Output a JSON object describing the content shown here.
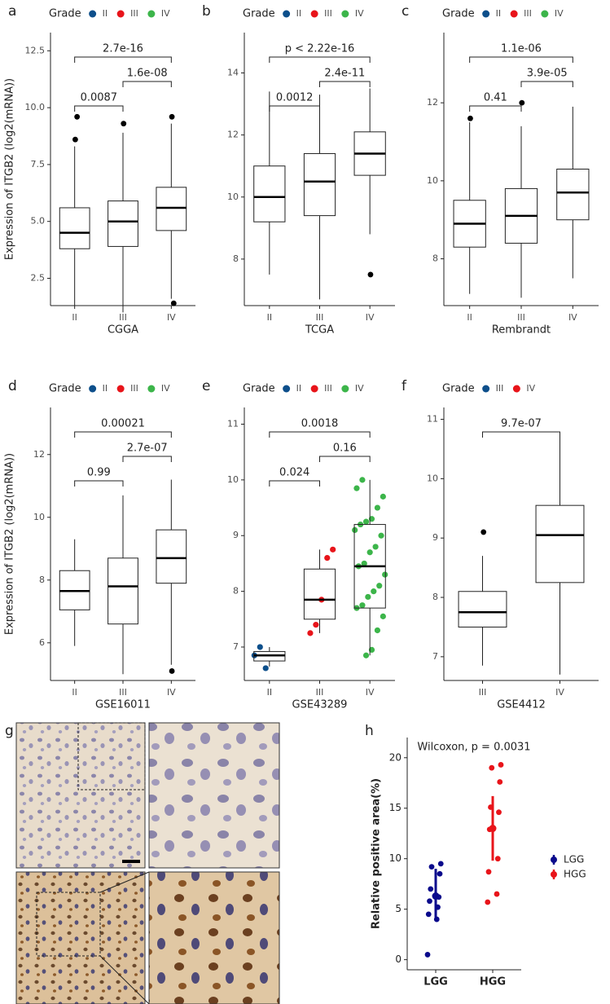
{
  "chart_data": [
    {
      "type": "box",
      "panel_label": "a",
      "legend_title": "Grade",
      "categories": [
        "II",
        "III",
        "IV"
      ],
      "colors": [
        "#0d4f8b",
        "#e8141a",
        "#3cb54a"
      ],
      "x_label": "CGGA",
      "y_label": "Expression of ITGB2 (log2(mRNA))",
      "ylim": [
        1.3,
        13.3
      ],
      "yticks": [
        2.5,
        {
          "value": 5,
          "label": "5.0"
        },
        7.5,
        {
          "value": 10,
          "label": "10.0"
        },
        12.5
      ],
      "boxes": [
        {
          "min": 1.3,
          "q1": 3.8,
          "median": 4.5,
          "q3": 5.6,
          "max": 8.3,
          "outliers": [
            8.6,
            9.6
          ]
        },
        {
          "min": 1.0,
          "q1": 3.9,
          "median": 5.0,
          "q3": 5.9,
          "max": 8.9,
          "outliers": [
            9.3
          ]
        },
        {
          "min": 1.6,
          "q1": 4.6,
          "median": 5.6,
          "q3": 6.5,
          "max": 9.3,
          "outliers": [
            9.6,
            1.4
          ]
        }
      ],
      "comparisons": [
        {
          "groups": [
            0,
            1
          ],
          "label": "0.0087"
        },
        {
          "groups": [
            1,
            2
          ],
          "label": "1.6e-08"
        },
        {
          "groups": [
            0,
            2
          ],
          "label": "2.7e-16"
        }
      ]
    },
    {
      "type": "box",
      "panel_label": "b",
      "legend_title": "Grade",
      "categories": [
        "II",
        "III",
        "IV"
      ],
      "colors": [
        "#0d4f8b",
        "#e8141a",
        "#3cb54a"
      ],
      "x_label": "TCGA",
      "ylim": [
        6.5,
        15.3
      ],
      "yticks": [
        8,
        10,
        12,
        14
      ],
      "boxes": [
        {
          "min": 7.5,
          "q1": 9.2,
          "median": 10.0,
          "q3": 11.0,
          "max": 13.4,
          "outliers": []
        },
        {
          "min": 6.7,
          "q1": 9.4,
          "median": 10.5,
          "q3": 11.4,
          "max": 13.3,
          "outliers": []
        },
        {
          "min": 8.8,
          "q1": 10.7,
          "median": 11.4,
          "q3": 12.1,
          "max": 13.5,
          "outliers": [
            7.5
          ]
        }
      ],
      "comparisons": [
        {
          "groups": [
            0,
            1
          ],
          "label": "0.0012"
        },
        {
          "groups": [
            1,
            2
          ],
          "label": "2.4e-11"
        },
        {
          "groups": [
            0,
            2
          ],
          "label": "p < 2.22e-16"
        }
      ]
    },
    {
      "type": "box",
      "panel_label": "c",
      "legend_title": "Grade",
      "categories": [
        "II",
        "III",
        "IV"
      ],
      "colors": [
        "#0d4f8b",
        "#e8141a",
        "#3cb54a"
      ],
      "x_label": "Rembrandt",
      "ylim": [
        6.8,
        13.8
      ],
      "yticks": [
        8,
        10,
        12
      ],
      "boxes": [
        {
          "min": 7.1,
          "q1": 8.3,
          "median": 8.9,
          "q3": 9.5,
          "max": 11.5,
          "outliers": [
            11.6
          ]
        },
        {
          "min": 7.0,
          "q1": 8.4,
          "median": 9.1,
          "q3": 9.8,
          "max": 11.4,
          "outliers": [
            12.0
          ]
        },
        {
          "min": 7.5,
          "q1": 9.0,
          "median": 9.7,
          "q3": 10.3,
          "max": 11.9,
          "outliers": []
        }
      ],
      "comparisons": [
        {
          "groups": [
            0,
            1
          ],
          "label": "0.41"
        },
        {
          "groups": [
            1,
            2
          ],
          "label": "3.9e-05"
        },
        {
          "groups": [
            0,
            2
          ],
          "label": "1.1e-06"
        }
      ]
    },
    {
      "type": "box",
      "panel_label": "d",
      "legend_title": "Grade",
      "categories": [
        "II",
        "III",
        "IV"
      ],
      "colors": [
        "#0d4f8b",
        "#e8141a",
        "#3cb54a"
      ],
      "x_label": "GSE16011",
      "y_label": "Expression of ITGB2 (log2(mRNA))",
      "ylim": [
        4.8,
        13.5
      ],
      "yticks": [
        6,
        8,
        10,
        12
      ],
      "boxes": [
        {
          "min": 5.9,
          "q1": 7.05,
          "median": 7.65,
          "q3": 8.3,
          "max": 9.3,
          "outliers": []
        },
        {
          "min": 5.0,
          "q1": 6.6,
          "median": 7.8,
          "q3": 8.7,
          "max": 10.7,
          "outliers": []
        },
        {
          "min": 5.3,
          "q1": 7.9,
          "median": 8.7,
          "q3": 9.6,
          "max": 11.2,
          "outliers": [
            5.1
          ]
        }
      ],
      "comparisons": [
        {
          "groups": [
            0,
            1
          ],
          "label": "0.99"
        },
        {
          "groups": [
            1,
            2
          ],
          "label": "2.7e-07"
        },
        {
          "groups": [
            0,
            2
          ],
          "label": "0.00021"
        }
      ]
    },
    {
      "type": "box",
      "panel_label": "e",
      "legend_title": "Grade",
      "categories": [
        "II",
        "III",
        "IV"
      ],
      "colors": [
        "#0d4f8b",
        "#e8141a",
        "#3cb54a"
      ],
      "x_label": "GSE43289",
      "ylim": [
        6.4,
        11.3
      ],
      "yticks": [
        7,
        8,
        9,
        10,
        11
      ],
      "boxes": [
        {
          "min": 6.65,
          "q1": 6.75,
          "median": 6.85,
          "q3": 6.92,
          "max": 7.0,
          "outliers": [],
          "points": [
            6.85,
            7.0,
            6.62
          ]
        },
        {
          "min": 7.25,
          "q1": 7.5,
          "median": 7.85,
          "q3": 8.4,
          "max": 8.75,
          "outliers": [],
          "points": [
            7.25,
            7.4,
            7.85,
            8.6,
            8.75
          ]
        },
        {
          "min": 6.85,
          "q1": 7.7,
          "median": 8.45,
          "q3": 9.2,
          "max": 10.0,
          "outliers": [],
          "points": [
            6.85,
            6.95,
            7.3,
            7.55,
            7.7,
            7.75,
            7.9,
            8.0,
            8.1,
            8.3,
            8.45,
            8.5,
            8.7,
            8.8,
            9.0,
            9.1,
            9.2,
            9.25,
            9.3,
            9.5,
            9.7,
            9.85,
            10.0
          ]
        }
      ],
      "comparisons": [
        {
          "groups": [
            0,
            1
          ],
          "label": "0.024"
        },
        {
          "groups": [
            1,
            2
          ],
          "label": "0.16"
        },
        {
          "groups": [
            0,
            2
          ],
          "label": "0.0018"
        }
      ]
    },
    {
      "type": "box",
      "panel_label": "f",
      "legend_title": "Grade",
      "categories": [
        "III",
        "IV"
      ],
      "colors": [
        "#0d4f8b",
        "#e8141a"
      ],
      "x_label": "GSE4412",
      "ylim": [
        6.6,
        11.2
      ],
      "yticks": [
        7,
        8,
        9,
        10,
        11
      ],
      "boxes": [
        {
          "min": 6.85,
          "q1": 7.5,
          "median": 7.75,
          "q3": 8.1,
          "max": 8.7,
          "outliers": [
            9.1
          ]
        },
        {
          "min": 6.7,
          "q1": 8.25,
          "median": 9.05,
          "q3": 9.55,
          "max": 10.7,
          "outliers": []
        }
      ],
      "comparisons": [
        {
          "groups": [
            0,
            1
          ],
          "label": "9.7e-07"
        }
      ]
    },
    {
      "type": "dot",
      "panel_label": "h",
      "annotation": "Wilcoxon, p = 0.0031",
      "categories": [
        "LGG",
        "HGG"
      ],
      "colors": [
        "#0a0a8c",
        "#e8141a"
      ],
      "y_label": "Relative positive area(%)",
      "ylim": [
        -1,
        22
      ],
      "yticks": [
        0,
        5,
        10,
        15,
        20
      ],
      "groups": [
        {
          "points": [
            0.5,
            4.0,
            4.5,
            5.2,
            5.8,
            6.2,
            7.0,
            8.5,
            9.2,
            9.5
          ],
          "center": 6.3,
          "low": 4.2,
          "high": 9.0
        },
        {
          "points": [
            5.7,
            6.5,
            8.7,
            10.0,
            12.9,
            14.6,
            15.1,
            17.6,
            19.0,
            19.3
          ],
          "center": 13.0,
          "low": 9.8,
          "high": 16.2
        }
      ]
    }
  ],
  "image_panel": {
    "label": "g"
  }
}
